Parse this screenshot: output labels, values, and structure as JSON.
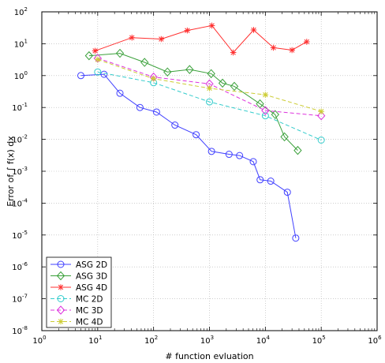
{
  "chart_data": {
    "type": "line",
    "title": "",
    "xlabel": "# function evluation",
    "ylabel": "Error of ∫ f(x) dx",
    "xscale": "log",
    "yscale": "log",
    "xlim": [
      1,
      1000000
    ],
    "ylim": [
      1e-08,
      100
    ],
    "grid": "dotted",
    "legend_position": "bottom-left",
    "x_ticks": [
      {
        "value": 1,
        "base": "10",
        "exp": "0"
      },
      {
        "value": 10,
        "base": "10",
        "exp": "1"
      },
      {
        "value": 100,
        "base": "10",
        "exp": "2"
      },
      {
        "value": 1000,
        "base": "10",
        "exp": "3"
      },
      {
        "value": 10000,
        "base": "10",
        "exp": "4"
      },
      {
        "value": 100000,
        "base": "10",
        "exp": "5"
      },
      {
        "value": 1000000,
        "base": "10",
        "exp": "6"
      }
    ],
    "y_ticks": [
      {
        "value": 1e-08,
        "base": "10",
        "exp": "-8"
      },
      {
        "value": 1e-07,
        "base": "10",
        "exp": "-7"
      },
      {
        "value": 1e-06,
        "base": "10",
        "exp": "-6"
      },
      {
        "value": 1e-05,
        "base": "10",
        "exp": "-5"
      },
      {
        "value": 0.0001,
        "base": "10",
        "exp": "-4"
      },
      {
        "value": 0.001,
        "base": "10",
        "exp": "-3"
      },
      {
        "value": 0.01,
        "base": "10",
        "exp": "-2"
      },
      {
        "value": 0.1,
        "base": "10",
        "exp": "-1"
      },
      {
        "value": 1,
        "base": "10",
        "exp": "0"
      },
      {
        "value": 10,
        "base": "10",
        "exp": "1"
      },
      {
        "value": 100,
        "base": "10",
        "exp": "2"
      }
    ],
    "series": [
      {
        "name": "ASG 2D",
        "color": "#4040ff",
        "marker": "circle",
        "dash": "solid",
        "x": [
          5,
          13,
          25,
          57,
          113,
          241,
          577,
          1089,
          2241,
          3457,
          6081,
          8065,
          12481,
          24769,
          35000
        ],
        "y": [
          1.0,
          1.1,
          0.28,
          0.1,
          0.072,
          0.028,
          0.014,
          0.0042,
          0.0034,
          0.0031,
          0.002,
          0.00054,
          0.00049,
          0.00022,
          8e-06
        ]
      },
      {
        "name": "ASG 3D",
        "color": "#3aa03a",
        "marker": "diamond",
        "dash": "solid",
        "x": [
          7,
          25,
          69,
          177,
          441,
          1073,
          1713,
          2785,
          8017,
          15000,
          22000,
          38000
        ],
        "y": [
          4.2,
          5.0,
          2.6,
          1.3,
          1.55,
          1.15,
          0.58,
          0.46,
          0.13,
          0.06,
          0.012,
          0.0045
        ]
      },
      {
        "name": "ASG 4D",
        "color": "#ff3030",
        "marker": "star",
        "dash": "solid",
        "x": [
          9,
          41,
          137,
          401,
          1105,
          2665,
          6177,
          13953,
          30000,
          55000
        ],
        "y": [
          6.0,
          15.5,
          14.0,
          26.0,
          37.0,
          5.3,
          27.0,
          7.5,
          6.3,
          11.5
        ]
      },
      {
        "name": "MC 2D",
        "color": "#33cccc",
        "marker": "circle",
        "dash": "dashed",
        "x": [
          10,
          100,
          1000,
          10000,
          100000
        ],
        "y": [
          1.3,
          0.6,
          0.15,
          0.055,
          0.0095
        ]
      },
      {
        "name": "MC 3D",
        "color": "#dd33dd",
        "marker": "diamond",
        "dash": "dashed",
        "x": [
          10,
          100,
          1000,
          10000,
          100000
        ],
        "y": [
          3.5,
          0.9,
          0.55,
          0.08,
          0.055
        ]
      },
      {
        "name": "MC 4D",
        "color": "#cccc33",
        "marker": "star",
        "dash": "dashed",
        "x": [
          10,
          100,
          1000,
          10000,
          100000
        ],
        "y": [
          3.2,
          0.8,
          0.4,
          0.25,
          0.075
        ]
      }
    ]
  }
}
